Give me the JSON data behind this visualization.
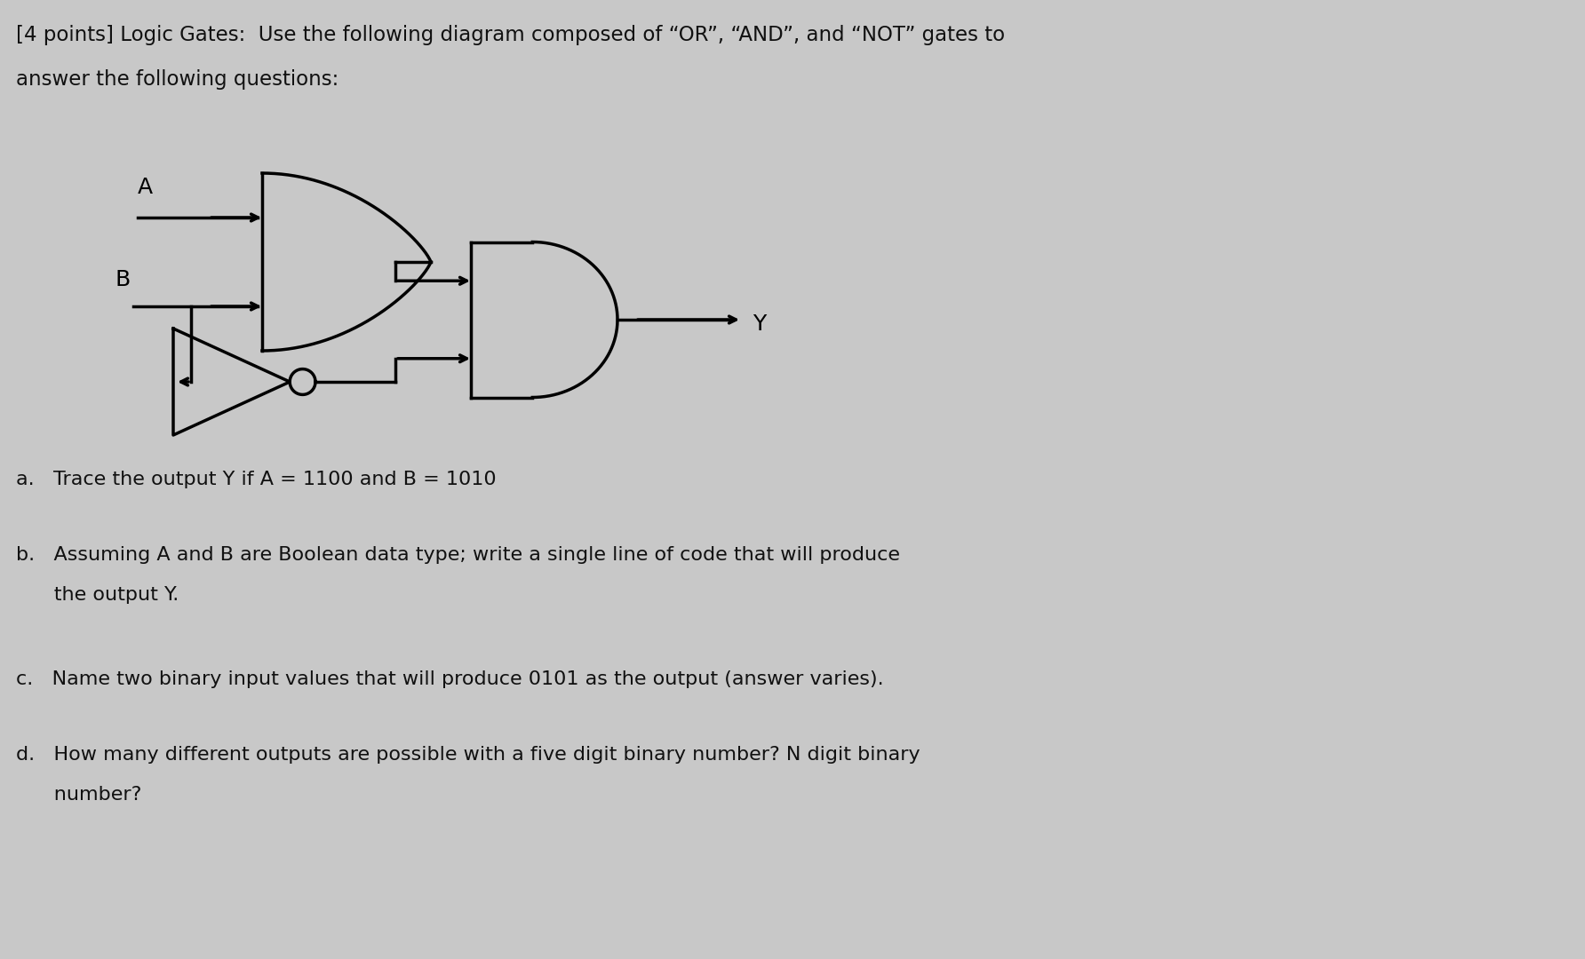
{
  "title_line1": "[4 points] Logic Gates:  Use the following diagram composed of “OR”, “AND”, and “NOT” gates to",
  "title_line2": "answer the following questions:",
  "q_a": "a.   Trace the output Y if A = 1100 and B = 1010",
  "q_b1": "b.   Assuming A and B are Boolean data type; write a single line of code that will produce",
  "q_b2": "      the output Y.",
  "q_c": "c.   Name two binary input values that will produce 0101 as the output (answer varies).",
  "q_d1": "d.   How many different outputs are possible with a five digit binary number? N digit binary",
  "q_d2": "      number?",
  "bg_color": "#c8c8c8",
  "text_color": "#111111",
  "gate_line_color": "#000000"
}
